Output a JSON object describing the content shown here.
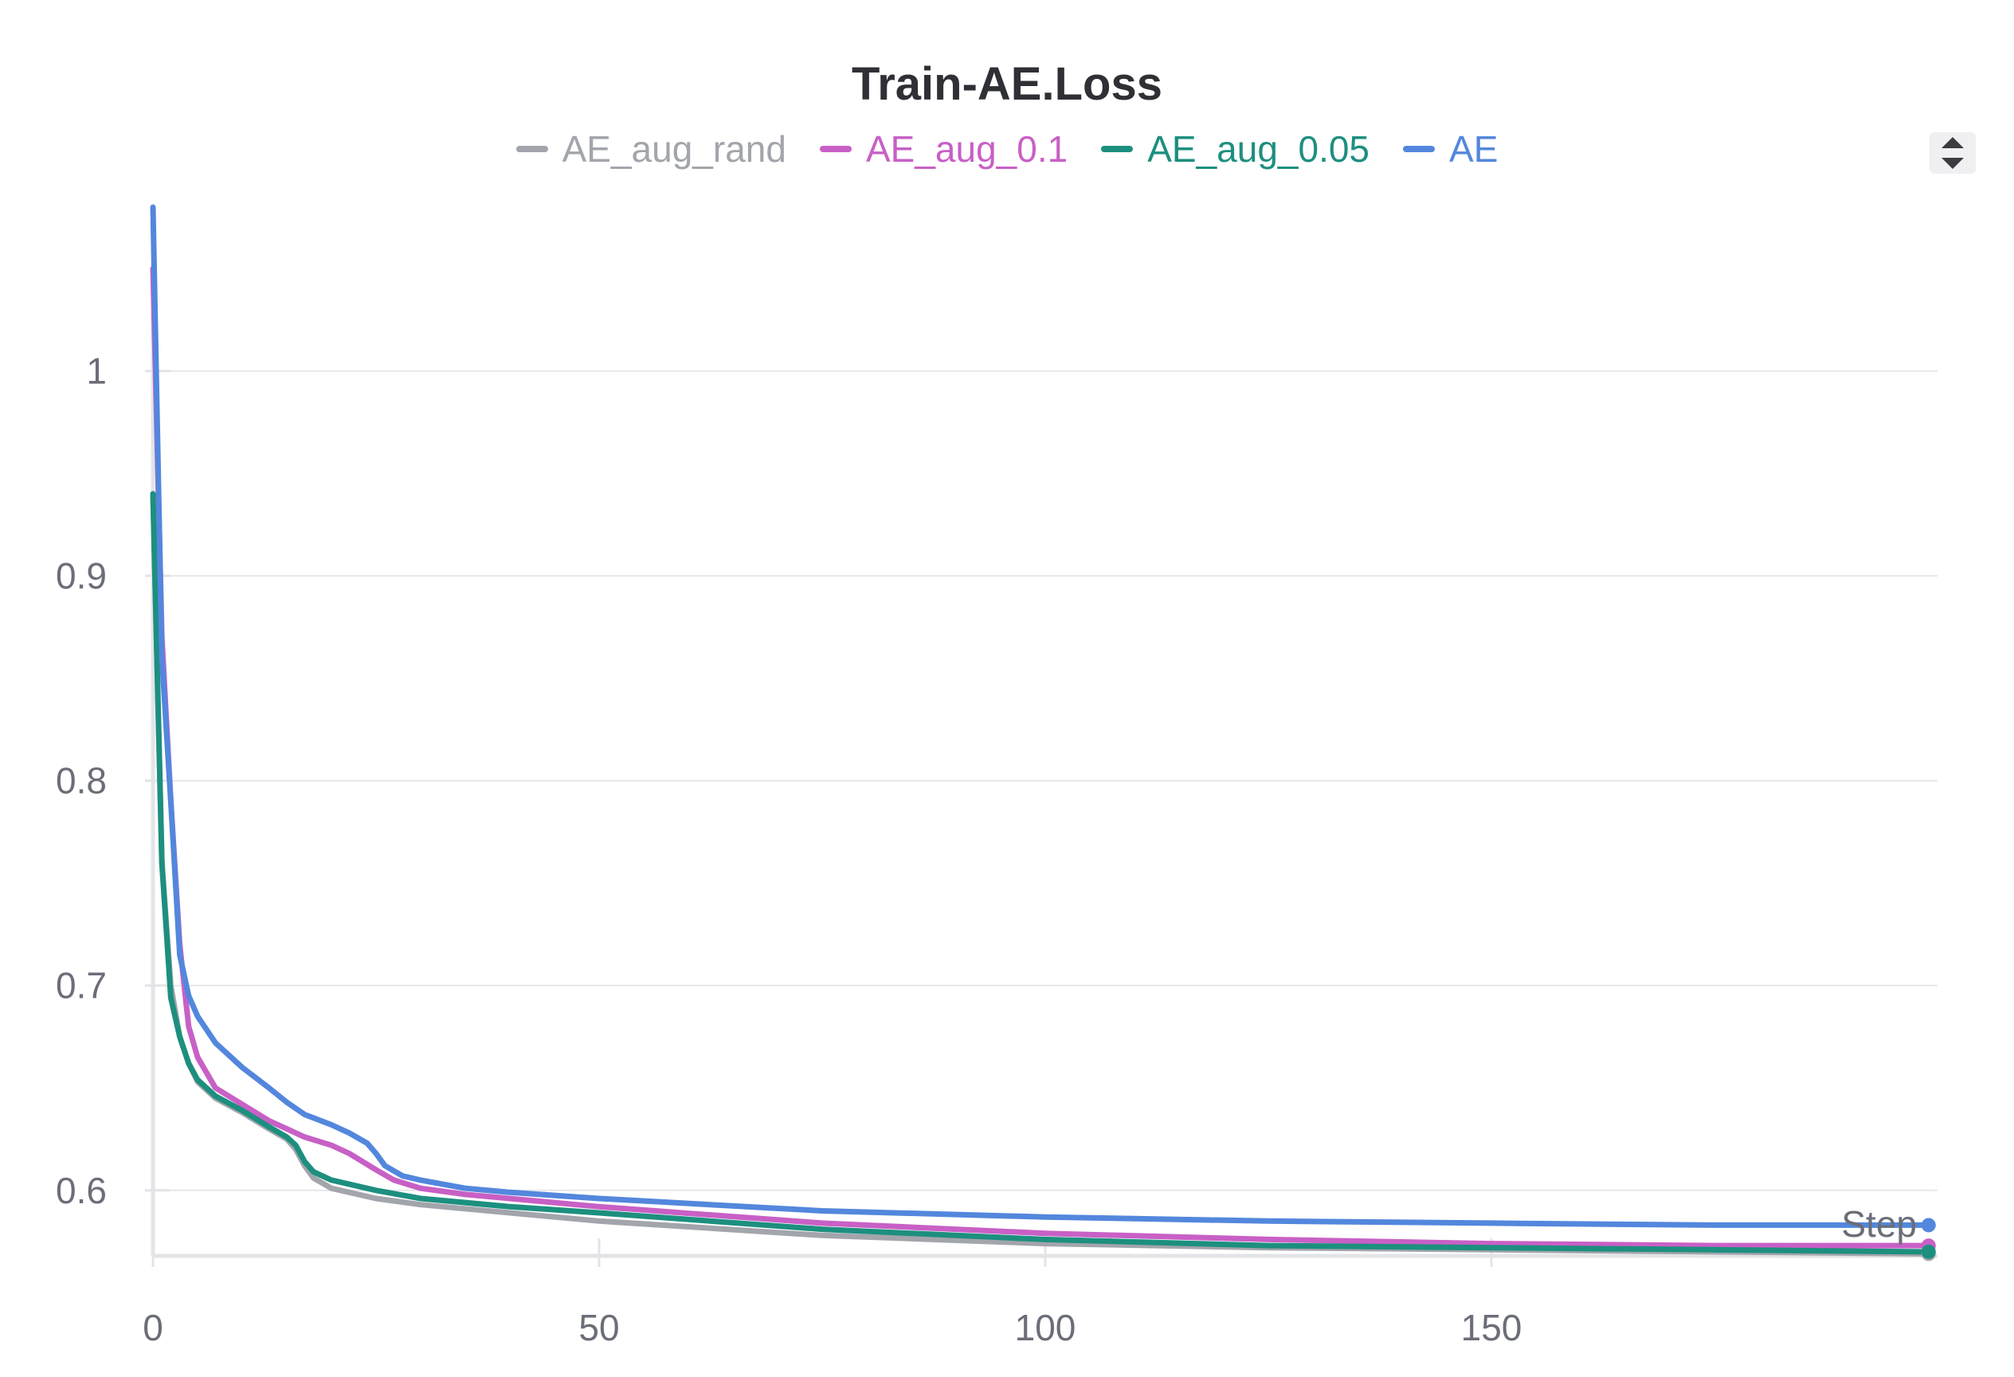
{
  "chart_data": {
    "type": "line",
    "title": "Train-AE.Loss",
    "xlabel": "Step",
    "ylabel": "",
    "xlim": [
      0,
      200
    ],
    "ylim": [
      0.568,
      1.08
    ],
    "xticks": [
      0,
      50,
      100,
      150
    ],
    "yticks": [
      0.6,
      0.7,
      0.8,
      0.9,
      1
    ],
    "ytick_labels": [
      "0.6",
      "0.7",
      "0.8",
      "0.9",
      "1"
    ],
    "grid": true,
    "legend_position": "top-center",
    "series": [
      {
        "name": "AE_aug_rand",
        "color": "#a2a5ab",
        "x": [
          0,
          1,
          2,
          3,
          4,
          5,
          7,
          10,
          13,
          15,
          16,
          17,
          18,
          20,
          25,
          30,
          40,
          50,
          75,
          100,
          125,
          150,
          175,
          199
        ],
        "y": [
          0.94,
          0.76,
          0.7,
          0.675,
          0.662,
          0.653,
          0.645,
          0.638,
          0.63,
          0.625,
          0.62,
          0.612,
          0.606,
          0.601,
          0.596,
          0.593,
          0.589,
          0.585,
          0.578,
          0.574,
          0.572,
          0.571,
          0.57,
          0.569
        ]
      },
      {
        "name": "AE_aug_0.1",
        "color": "#c860c6",
        "x": [
          0,
          1,
          2,
          3,
          4,
          5,
          7,
          10,
          13,
          15,
          17,
          20,
          22,
          25,
          27,
          30,
          35,
          40,
          50,
          75,
          100,
          125,
          150,
          175,
          199
        ],
        "y": [
          1.05,
          0.87,
          0.79,
          0.72,
          0.68,
          0.665,
          0.65,
          0.642,
          0.634,
          0.63,
          0.626,
          0.622,
          0.618,
          0.61,
          0.605,
          0.601,
          0.598,
          0.596,
          0.592,
          0.584,
          0.579,
          0.576,
          0.574,
          0.573,
          0.573
        ]
      },
      {
        "name": "AE_aug_0.05",
        "color": "#1d8f7f",
        "x": [
          0,
          1,
          2,
          3,
          4,
          5,
          7,
          10,
          13,
          15,
          16,
          17,
          18,
          20,
          25,
          30,
          40,
          50,
          75,
          100,
          125,
          150,
          175,
          199
        ],
        "y": [
          0.94,
          0.76,
          0.694,
          0.675,
          0.662,
          0.654,
          0.646,
          0.639,
          0.631,
          0.626,
          0.622,
          0.614,
          0.609,
          0.605,
          0.6,
          0.596,
          0.592,
          0.589,
          0.581,
          0.576,
          0.573,
          0.572,
          0.571,
          0.57
        ]
      },
      {
        "name": "AE",
        "color": "#5387dd",
        "x": [
          0,
          1,
          2,
          3,
          4,
          5,
          7,
          10,
          13,
          15,
          17,
          20,
          22,
          24,
          25,
          26,
          28,
          30,
          35,
          40,
          50,
          75,
          100,
          125,
          150,
          175,
          199
        ],
        "y": [
          1.08,
          0.86,
          0.79,
          0.715,
          0.695,
          0.685,
          0.672,
          0.66,
          0.65,
          0.643,
          0.637,
          0.632,
          0.628,
          0.623,
          0.618,
          0.612,
          0.607,
          0.605,
          0.601,
          0.599,
          0.596,
          0.59,
          0.587,
          0.585,
          0.584,
          0.583,
          0.583
        ]
      }
    ]
  }
}
